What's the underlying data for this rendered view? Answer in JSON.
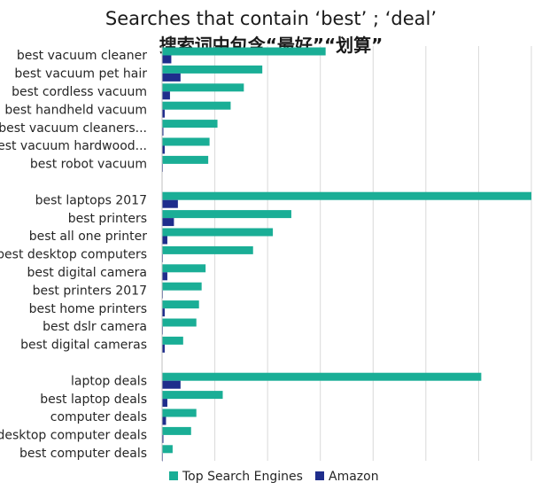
{
  "chart_data": {
    "type": "bar",
    "orientation": "horizontal",
    "title": "Searches that contain ‘best’ ; ‘deal’",
    "subtitle": "搜索词中包含“最好”“划算”",
    "xlabel": "",
    "ylabel": "",
    "xlim": [
      0,
      140
    ],
    "grid": true,
    "legend_position": "bottom",
    "groups": [
      {
        "categories": [
          "best vacuum cleaner",
          "best vacuum pet hair",
          "best cordless vacuum",
          "best handheld vacuum",
          "best vacuum cleaners...",
          "best vacuum hardwood...",
          "best robot vacuum"
        ],
        "series": [
          {
            "name": "Top Search Engines",
            "values": [
              62,
              38,
              31,
              26,
              21,
              18,
              17.5
            ]
          },
          {
            "name": "Amazon",
            "values": [
              3.5,
              7,
              3,
              1,
              0.5,
              1,
              0.3
            ]
          }
        ]
      },
      {
        "categories": [
          "best laptops 2017",
          "best printers",
          "best all one printer",
          "best desktop computers",
          "best digital camera",
          "best printers 2017",
          "best home printers",
          "best dslr camera",
          "best digital cameras"
        ],
        "series": [
          {
            "name": "Top Search Engines",
            "values": [
              140,
              49,
              42,
              34.5,
              16.5,
              15,
              14,
              13,
              8
            ]
          },
          {
            "name": "Amazon",
            "values": [
              6,
              4.5,
              2,
              0.3,
              2,
              0.3,
              1,
              0.3,
              1
            ]
          }
        ]
      },
      {
        "categories": [
          "laptop deals",
          "best laptop deals",
          "computer deals",
          "desktop computer deals",
          "best computer deals"
        ],
        "series": [
          {
            "name": "Top Search Engines",
            "values": [
              121,
              23,
              13,
              11,
              4
            ]
          },
          {
            "name": "Amazon",
            "values": [
              7,
              2,
              1.5,
              0.5,
              0.3
            ]
          }
        ]
      }
    ],
    "legend": [
      {
        "name": "Top Search Engines",
        "color": "#1aae96"
      },
      {
        "name": "Amazon",
        "color": "#1f2d8c"
      }
    ],
    "colors": {
      "engines": "#1aae96",
      "amazon": "#1f2d8c",
      "grid": "#d9d9d9",
      "axis": "#bfbfbf"
    }
  }
}
